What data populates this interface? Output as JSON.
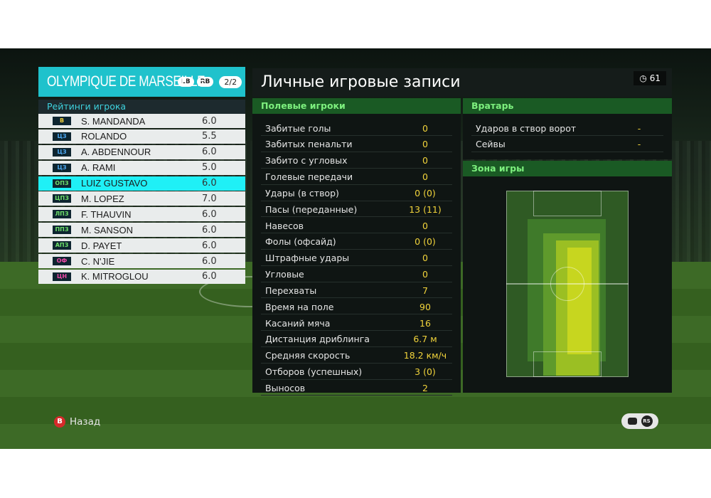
{
  "team": {
    "name": "OLYMPIQUE DE MARSEILLE",
    "btn_lb": "LB",
    "btn_rb": "RB",
    "page": "2/2"
  },
  "ratings_title": "Рейтинги игрока",
  "players": [
    {
      "pos": "В",
      "pos_color": "#f3d13b",
      "name": "S. MANDANDA",
      "rating": "6.0"
    },
    {
      "pos": "ЦЗ",
      "pos_color": "#4da8f2",
      "name": "ROLANDO",
      "rating": "5.5"
    },
    {
      "pos": "ЦЗ",
      "pos_color": "#4da8f2",
      "name": "A. ABDENNOUR",
      "rating": "6.0"
    },
    {
      "pos": "ЦЗ",
      "pos_color": "#4da8f2",
      "name": "A. RAMI",
      "rating": "5.0"
    },
    {
      "pos": "ОПЗ",
      "pos_color": "#6ee06a",
      "name": "LUIZ GUSTAVO",
      "rating": "6.0"
    },
    {
      "pos": "ЦПЗ",
      "pos_color": "#6ee06a",
      "name": "M. LOPEZ",
      "rating": "7.0"
    },
    {
      "pos": "ЛПЗ",
      "pos_color": "#6ee06a",
      "name": "F. THAUVIN",
      "rating": "6.0"
    },
    {
      "pos": "ППЗ",
      "pos_color": "#6ee06a",
      "name": "M. SANSON",
      "rating": "6.0"
    },
    {
      "pos": "АПЗ",
      "pos_color": "#6ee06a",
      "name": "D. PAYET",
      "rating": "6.0"
    },
    {
      "pos": "ОФ",
      "pos_color": "#f04aa8",
      "name": "C. N'JIE",
      "rating": "6.0"
    },
    {
      "pos": "ЦН",
      "pos_color": "#f04aa8",
      "name": "K. MITROGLOU",
      "rating": "6.0"
    }
  ],
  "selected_index": 4,
  "main_title": "Личные игровые записи",
  "timer": "61",
  "field_players_title": "Полевые игроки",
  "field_stats": [
    {
      "label": "Забитые голы",
      "value": "0"
    },
    {
      "label": "Забитых пенальти",
      "value": "0"
    },
    {
      "label": "Забито с угловых",
      "value": "0"
    },
    {
      "label": "Голевые передачи",
      "value": "0"
    },
    {
      "label": "Удары (в створ)",
      "value": "0 (0)"
    },
    {
      "label": "Пасы (переданные)",
      "value": "13 (11)"
    },
    {
      "label": "Навесов",
      "value": "0"
    },
    {
      "label": "Фолы (офсайд)",
      "value": "0 (0)"
    },
    {
      "label": "Штрафные удары",
      "value": "0"
    },
    {
      "label": "Угловые",
      "value": "0"
    },
    {
      "label": "Перехваты",
      "value": "7"
    },
    {
      "label": "Время на поле",
      "value": "90"
    },
    {
      "label": "Касаний мяча",
      "value": "16"
    },
    {
      "label": "Дистанция дриблинга",
      "value": "6.7 м"
    },
    {
      "label": "Средняя скорость",
      "value": "18.2 км/ч"
    },
    {
      "label": "Отборов (успешных)",
      "value": "3 (0)"
    },
    {
      "label": "Выносов",
      "value": "2"
    }
  ],
  "goalkeeper_title": "Вратарь",
  "goalkeeper_stats": [
    {
      "label": "Ударов в створ ворот",
      "value": "-"
    },
    {
      "label": "Сейвы",
      "value": "-"
    }
  ],
  "zone_title": "Зона игры",
  "back_button": {
    "key": "B",
    "label": "Назад"
  },
  "chat_badge": "RS",
  "colors": {
    "accent": "#1fc2cc",
    "selected_row": "#1ff0f6",
    "section_header": "#1a5a24",
    "stat_value": "#f1d33b"
  }
}
